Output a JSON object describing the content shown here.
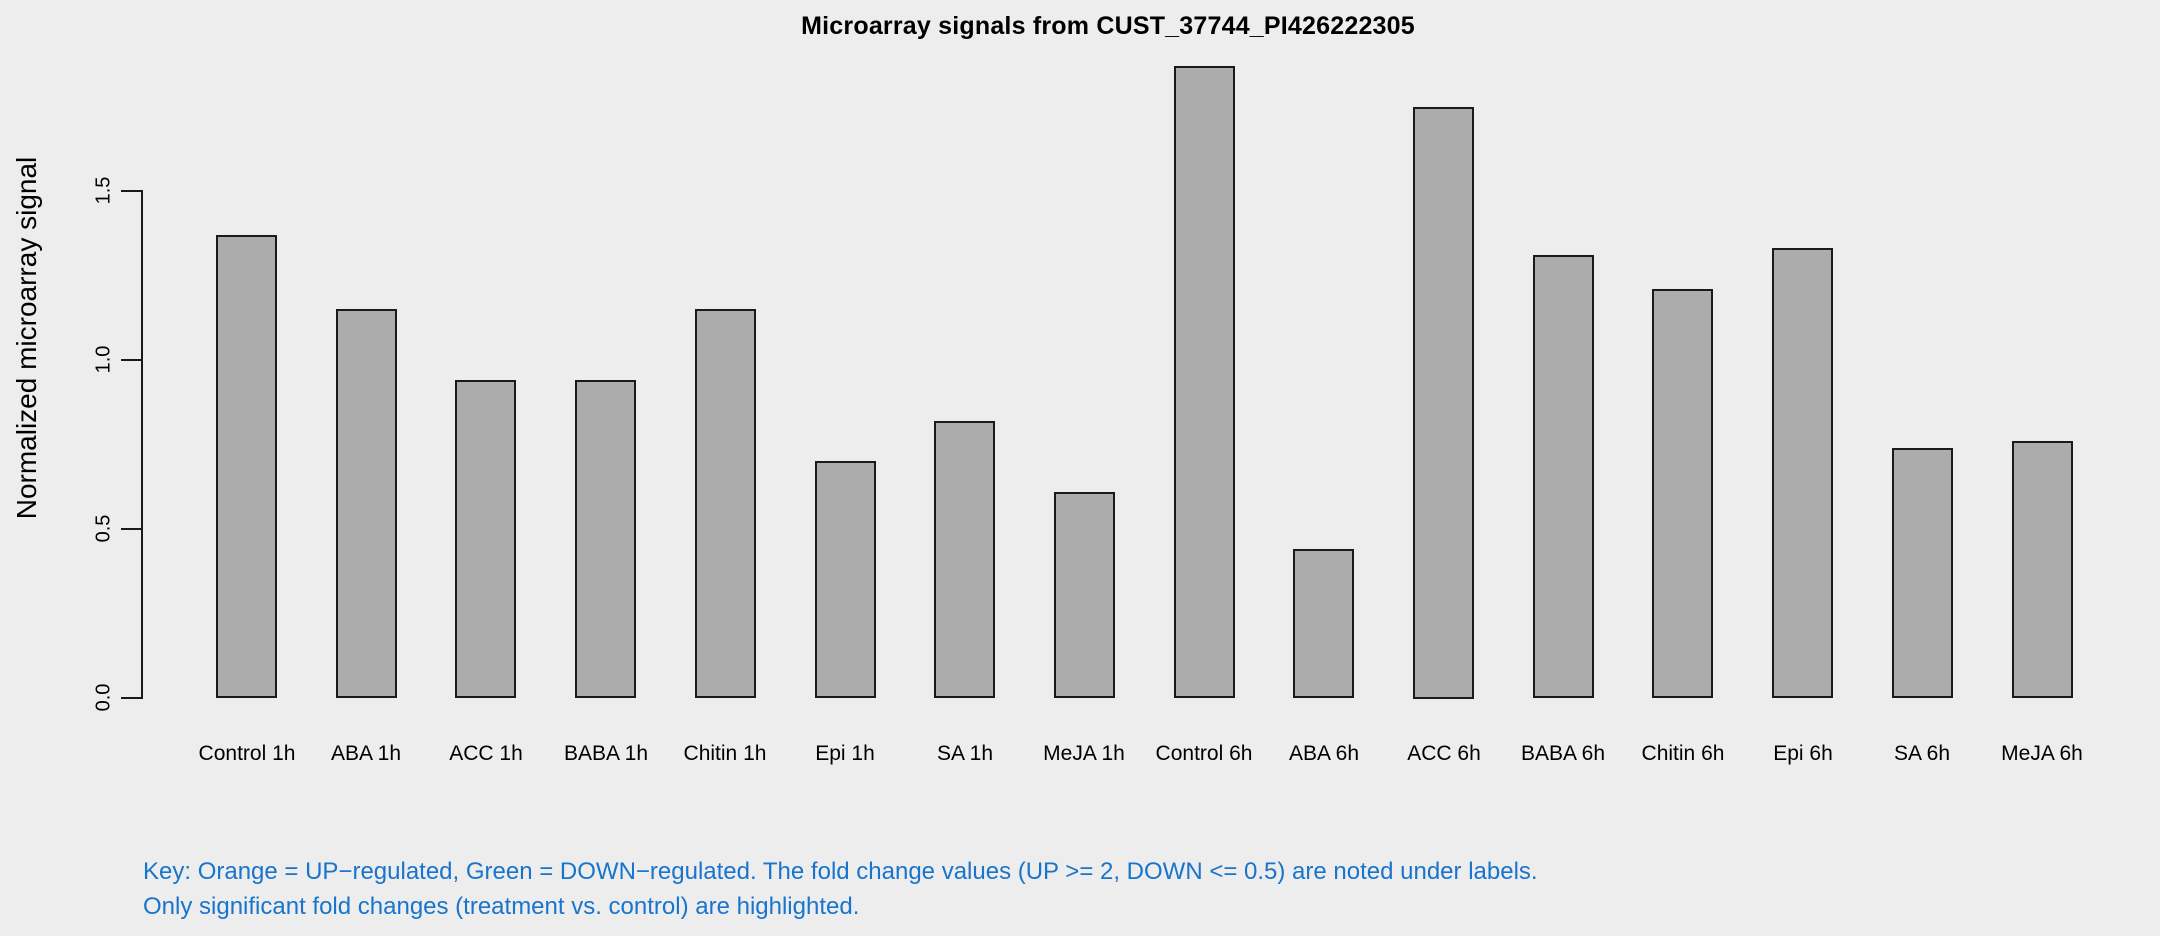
{
  "title": "Microarray signals from CUST_37744_PI426222305",
  "y_axis": {
    "label": "Normalized microarray signal",
    "tick_labels": [
      "0.0",
      "0.5",
      "1.0",
      "1.5"
    ]
  },
  "key": {
    "line1": "Key: Orange = UP−regulated, Green = DOWN−regulated. The fold change values (UP >= 2, DOWN <= 0.5) are noted under labels.",
    "line2": "Only significant fold changes (treatment vs. control) are highlighted.",
    "color": "#1874CD"
  },
  "colors": {
    "background": "#EDEDED",
    "bar_fill": "#ACACAC",
    "bar_border": "#1A1A1A",
    "axis": "#1A1A1A",
    "text": "#000000"
  },
  "chart_data": {
    "type": "bar",
    "title": "Microarray signals from CUST_37744_PI426222305",
    "xlabel": "",
    "ylabel": "Normalized microarray signal",
    "categories": [
      "Control 1h",
      "ABA 1h",
      "ACC 1h",
      "BABA 1h",
      "Chitin 1h",
      "Epi 1h",
      "SA 1h",
      "MeJA 1h",
      "Control 6h",
      "ABA 6h",
      "ACC 6h",
      "BABA 6h",
      "Chitin 6h",
      "Epi 6h",
      "SA 6h",
      "MeJA 6h"
    ],
    "values": [
      1.37,
      1.15,
      0.94,
      0.94,
      1.15,
      0.7,
      0.82,
      0.61,
      1.87,
      0.44,
      1.75,
      1.31,
      1.21,
      1.33,
      0.74,
      0.76
    ],
    "yticks": [
      0.0,
      0.5,
      1.0,
      1.5
    ],
    "ylim": [
      0,
      1.95
    ],
    "grid": false,
    "legend": "none",
    "annotation": "Key: Orange = UP−regulated, Green = DOWN−regulated. The fold change values (UP >= 2, DOWN <= 0.5) are noted under labels. Only significant fold changes (treatment vs. control) are highlighted."
  }
}
